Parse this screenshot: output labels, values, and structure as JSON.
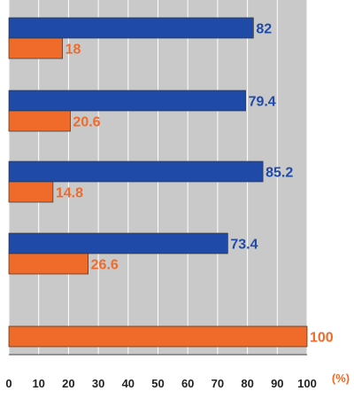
{
  "chart_data": {
    "type": "bar",
    "orientation": "horizontal",
    "categories": [
      "",
      "",
      "",
      "",
      ""
    ],
    "series": [
      {
        "values": [
          82,
          79.4,
          85.2,
          73.4,
          null
        ]
      },
      {
        "values": [
          18,
          20.6,
          14.8,
          26.6,
          100
        ]
      }
    ],
    "value_labels": [
      [
        "82",
        "79.4",
        "85.2",
        "73.4",
        null
      ],
      [
        "18",
        "20.6",
        "14.8",
        "26.6",
        "100"
      ]
    ],
    "xlim": [
      0,
      100
    ],
    "x_ticks": [
      0,
      10,
      20,
      30,
      40,
      50,
      60,
      70,
      80,
      90,
      100
    ],
    "x_unit_label": "(%)",
    "title": "",
    "xlabel": "",
    "ylabel": "",
    "grid": true,
    "legend": "none",
    "colors": {
      "plot_background": "#c9c9c9",
      "grid": "#ffffff",
      "series": [
        "#1f4aa8",
        "#f06a2a"
      ],
      "series_label": [
        "#1f4aa8",
        "#f06a2a"
      ],
      "axis_text": "#222222",
      "unit_text": "#f06a2a"
    }
  }
}
